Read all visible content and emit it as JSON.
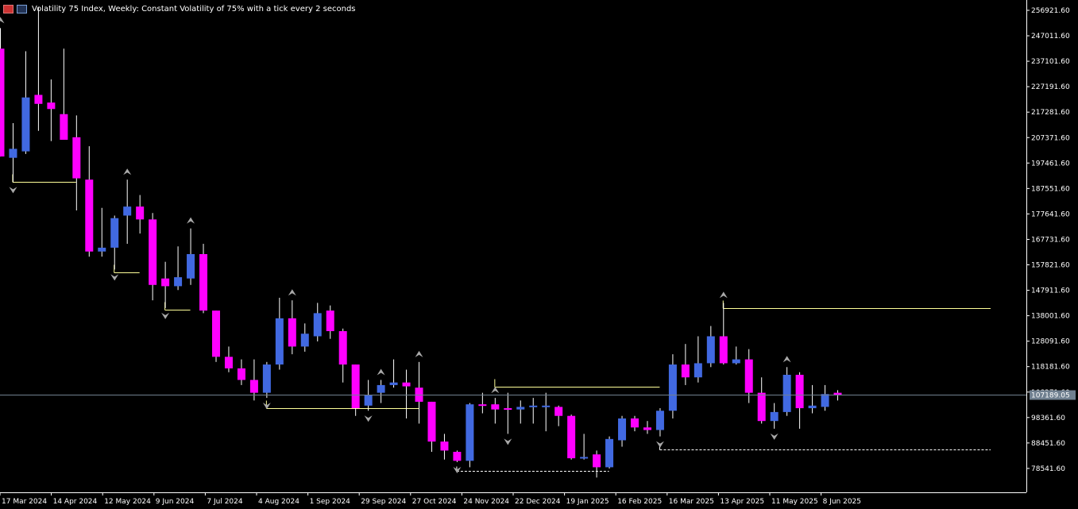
{
  "header": {
    "title": "Volatility 75 Index, Weekly:  Constant Volatility of 75% with a tick every 2 seconds",
    "icons": [
      "chart-menu-icon",
      "indicator-menu-icon"
    ]
  },
  "colors": {
    "bull": "#4169e1",
    "bear": "#ff00ff",
    "wick": "#ffffff",
    "level": "#ffff99",
    "current_line": "#708090",
    "fractal": "#a9a9a9",
    "label_bg": "#708090"
  },
  "current_price_label": "107189.05",
  "chart_data": {
    "type": "candlestick",
    "ylim": [
      73000,
      260000
    ],
    "price_ticks": [
      "256921.60",
      "247011.60",
      "237101.60",
      "227191.60",
      "217281.60",
      "207371.60",
      "197461.60",
      "187551.60",
      "177641.60",
      "167731.60",
      "157821.60",
      "147911.60",
      "138001.60",
      "128091.60",
      "118181.60",
      "108271.60",
      "98361.60",
      "88451.60",
      "78541.60"
    ],
    "date_labels": [
      "17 Mar 2024",
      "14 Apr 2024",
      "12 May 2024",
      "9 Jun 2024",
      "7 Jul 2024",
      "4 Aug 2024",
      "1 Sep 2024",
      "29 Sep 2024",
      "27 Oct 2024",
      "24 Nov 2024",
      "22 Dec 2024",
      "19 Jan 2025",
      "16 Feb 2025",
      "16 Mar 2025",
      "13 Apr 2025",
      "11 May 2025",
      "8 Jun 2025"
    ],
    "current_price": 107189.05,
    "candles": [
      {
        "o": 242000,
        "h": 250000,
        "l": 200000,
        "c": 200000
      },
      {
        "o": 199500,
        "h": 213000,
        "l": 190000,
        "c": 203000
      },
      {
        "o": 202000,
        "h": 241000,
        "l": 201000,
        "c": 223000
      },
      {
        "o": 224000,
        "h": 258000,
        "l": 210000,
        "c": 220500
      },
      {
        "o": 221000,
        "h": 230000,
        "l": 206000,
        "c": 218500
      },
      {
        "o": 216500,
        "h": 242000,
        "l": 207000,
        "c": 206500
      },
      {
        "o": 207500,
        "h": 216000,
        "l": 179000,
        "c": 191500
      },
      {
        "o": 191000,
        "h": 204000,
        "l": 161000,
        "c": 163000
      },
      {
        "o": 163000,
        "h": 180000,
        "l": 161000,
        "c": 164500
      },
      {
        "o": 164500,
        "h": 177000,
        "l": 156000,
        "c": 176000
      },
      {
        "o": 177000,
        "h": 191000,
        "l": 166000,
        "c": 180500
      },
      {
        "o": 180500,
        "h": 185000,
        "l": 170000,
        "c": 175500
      },
      {
        "o": 175500,
        "h": 178000,
        "l": 144000,
        "c": 150000
      },
      {
        "o": 152500,
        "h": 159000,
        "l": 141000,
        "c": 149500
      },
      {
        "o": 149500,
        "h": 165000,
        "l": 148000,
        "c": 153000
      },
      {
        "o": 152500,
        "h": 172000,
        "l": 150000,
        "c": 162000
      },
      {
        "o": 162000,
        "h": 166000,
        "l": 139000,
        "c": 140000
      },
      {
        "o": 140000,
        "h": 140000,
        "l": 120000,
        "c": 122000
      },
      {
        "o": 122000,
        "h": 126000,
        "l": 116000,
        "c": 117500
      },
      {
        "o": 117500,
        "h": 121000,
        "l": 111000,
        "c": 113000
      },
      {
        "o": 113000,
        "h": 121000,
        "l": 105000,
        "c": 108000
      },
      {
        "o": 108000,
        "h": 120000,
        "l": 106000,
        "c": 119000
      },
      {
        "o": 119000,
        "h": 145000,
        "l": 117000,
        "c": 137000
      },
      {
        "o": 137000,
        "h": 144000,
        "l": 123000,
        "c": 126000
      },
      {
        "o": 126000,
        "h": 135000,
        "l": 124000,
        "c": 131000
      },
      {
        "o": 130000,
        "h": 143000,
        "l": 128000,
        "c": 139000
      },
      {
        "o": 140000,
        "h": 142000,
        "l": 129000,
        "c": 132000
      },
      {
        "o": 132000,
        "h": 133000,
        "l": 112000,
        "c": 119000
      },
      {
        "o": 119000,
        "h": 119000,
        "l": 99000,
        "c": 102000
      },
      {
        "o": 103000,
        "h": 113000,
        "l": 101000,
        "c": 107000
      },
      {
        "o": 108000,
        "h": 113000,
        "l": 104000,
        "c": 111000
      },
      {
        "o": 111000,
        "h": 121000,
        "l": 110000,
        "c": 112000
      },
      {
        "o": 112000,
        "h": 117000,
        "l": 98000,
        "c": 110500
      },
      {
        "o": 110000,
        "h": 120000,
        "l": 96000,
        "c": 104500
      },
      {
        "o": 104500,
        "h": 104500,
        "l": 85000,
        "c": 89000
      },
      {
        "o": 89000,
        "h": 92000,
        "l": 82000,
        "c": 85500
      },
      {
        "o": 85000,
        "h": 85500,
        "l": 81000,
        "c": 81500
      },
      {
        "o": 81500,
        "h": 104000,
        "l": 79000,
        "c": 103500
      },
      {
        "o": 103500,
        "h": 108000,
        "l": 100000,
        "c": 103000
      },
      {
        "o": 103500,
        "h": 106000,
        "l": 96000,
        "c": 101500
      },
      {
        "o": 102000,
        "h": 108000,
        "l": 92000,
        "c": 101500
      },
      {
        "o": 101500,
        "h": 105000,
        "l": 96000,
        "c": 102500
      },
      {
        "o": 103000,
        "h": 106000,
        "l": 96000,
        "c": 103000
      },
      {
        "o": 103000,
        "h": 108000,
        "l": 93000,
        "c": 103000
      },
      {
        "o": 102500,
        "h": 103000,
        "l": 95000,
        "c": 99000
      },
      {
        "o": 99000,
        "h": 99500,
        "l": 82000,
        "c": 82500
      },
      {
        "o": 82500,
        "h": 92000,
        "l": 82000,
        "c": 83000
      },
      {
        "o": 84000,
        "h": 85500,
        "l": 75000,
        "c": 79000
      },
      {
        "o": 79000,
        "h": 91000,
        "l": 78500,
        "c": 90000
      },
      {
        "o": 89500,
        "h": 99000,
        "l": 87000,
        "c": 98000
      },
      {
        "o": 98000,
        "h": 99000,
        "l": 93000,
        "c": 94500
      },
      {
        "o": 94500,
        "h": 97000,
        "l": 92000,
        "c": 93500
      },
      {
        "o": 93500,
        "h": 102000,
        "l": 91000,
        "c": 101000
      },
      {
        "o": 101000,
        "h": 123000,
        "l": 98000,
        "c": 119000
      },
      {
        "o": 119000,
        "h": 127000,
        "l": 111000,
        "c": 114000
      },
      {
        "o": 114000,
        "h": 130000,
        "l": 112000,
        "c": 119500
      },
      {
        "o": 119500,
        "h": 134000,
        "l": 118000,
        "c": 130000
      },
      {
        "o": 130000,
        "h": 143000,
        "l": 119000,
        "c": 119500
      },
      {
        "o": 119500,
        "h": 126000,
        "l": 119000,
        "c": 121000
      },
      {
        "o": 121000,
        "h": 125000,
        "l": 104000,
        "c": 108000
      },
      {
        "o": 108000,
        "h": 114000,
        "l": 96000,
        "c": 97000
      },
      {
        "o": 97000,
        "h": 104000,
        "l": 94000,
        "c": 100500
      },
      {
        "o": 100500,
        "h": 118000,
        "l": 99000,
        "c": 115000
      },
      {
        "o": 115000,
        "h": 116000,
        "l": 94000,
        "c": 102000
      },
      {
        "o": 102000,
        "h": 111000,
        "l": 100000,
        "c": 103000
      },
      {
        "o": 102500,
        "h": 111000,
        "l": 101000,
        "c": 107500
      },
      {
        "o": 108000,
        "h": 109000,
        "l": 105000,
        "c": 107189
      }
    ],
    "fractals_up": [
      0,
      10,
      15,
      23,
      30,
      33,
      39,
      57,
      62
    ],
    "fractals_down": [
      1,
      9,
      13,
      21,
      29,
      36,
      40,
      52,
      61
    ],
    "levels": [
      {
        "price": 190000,
        "from": 1,
        "to": 6,
        "style": "solid"
      },
      {
        "price": 155000,
        "from": 9,
        "to": 11,
        "style": "solid"
      },
      {
        "price": 140500,
        "from": 13,
        "to": 15,
        "style": "solid"
      },
      {
        "price": 102000,
        "from": 21,
        "to": 33,
        "style": "solid"
      },
      {
        "price": 110500,
        "from": 39,
        "to": 52,
        "style": "solid"
      },
      {
        "price": 141000,
        "from": 57,
        "to": 77,
        "style": "solid"
      },
      {
        "price": 77500,
        "from": 36,
        "to": 48,
        "style": "dashed"
      },
      {
        "price": 86000,
        "from": 52,
        "to": 77,
        "style": "dashed"
      }
    ]
  }
}
